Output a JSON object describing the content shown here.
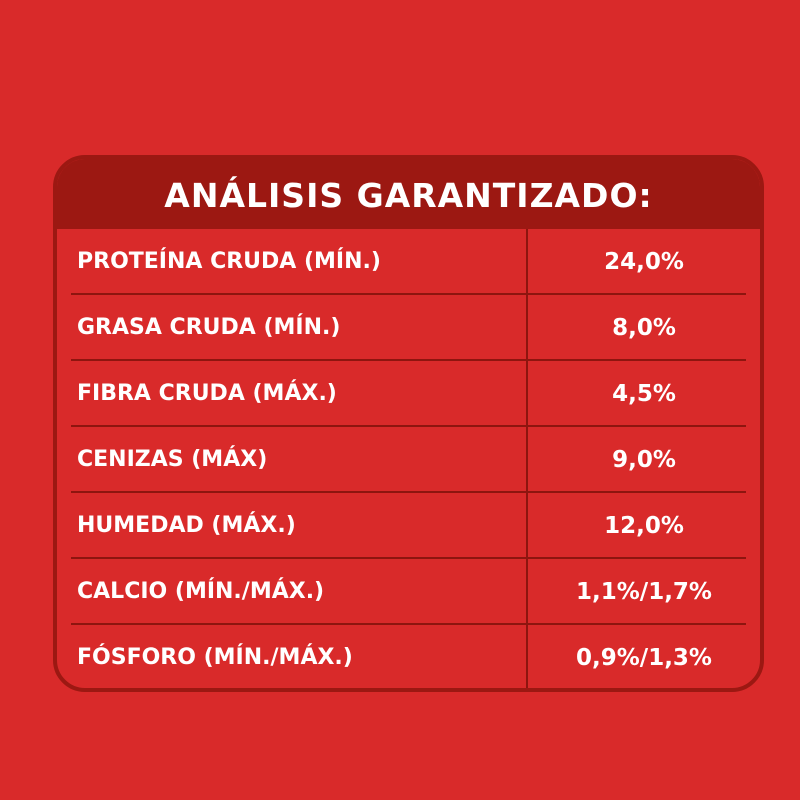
{
  "colors": {
    "background": "#d92a2a",
    "header": "#9c1812",
    "text": "#ffffff",
    "lines": "#8e150f"
  },
  "analysis": {
    "title": "ANÁLISIS GARANTIZADO:",
    "rows": [
      {
        "label": "PROTEÍNA CRUDA (MÍN.)",
        "value": "24,0%"
      },
      {
        "label": "GRASA CRUDA (MÍN.)",
        "value": "8,0%"
      },
      {
        "label": "FIBRA CRUDA (MÁX.)",
        "value": "4,5%"
      },
      {
        "label": "CENIZAS (MÁX)",
        "value": "9,0%"
      },
      {
        "label": "HUMEDAD (MÁX.)",
        "value": "12,0%"
      },
      {
        "label": "CALCIO (MÍN./MÁX.)",
        "value": "1,1%/1,7%"
      },
      {
        "label": "FÓSFORO (MÍN./MÁX.)",
        "value": "0,9%/1,3%"
      }
    ]
  }
}
